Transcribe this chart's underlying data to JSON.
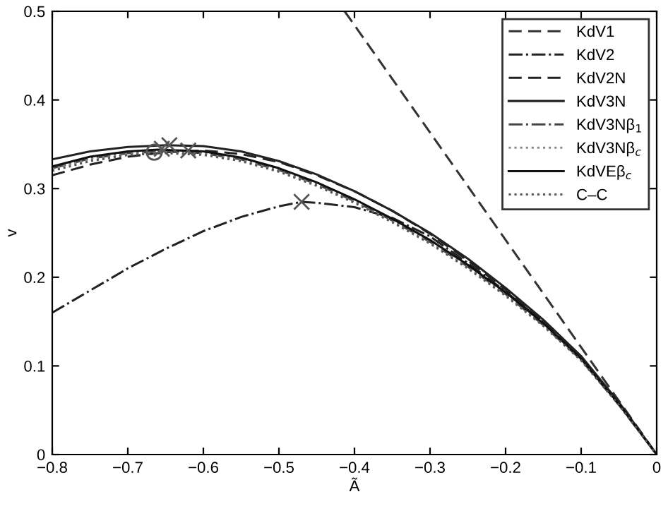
{
  "chart_data": {
    "type": "line",
    "xlabel": "Ã",
    "ylabel": "v",
    "xlim": [
      -0.8,
      0
    ],
    "ylim": [
      0,
      0.5
    ],
    "xticks": [
      -0.8,
      -0.7,
      -0.6,
      -0.5,
      -0.4,
      -0.3,
      -0.2,
      -0.1,
      0
    ],
    "yticks": [
      0,
      0.1,
      0.2,
      0.3,
      0.4,
      0.5
    ],
    "grid": false,
    "legend": "top right",
    "series": [
      {
        "name": "KdV1",
        "color": "#333333",
        "line_style": "dashed",
        "x": [
          -0.413,
          0
        ],
        "values": [
          0.5,
          0
        ]
      },
      {
        "name": "KdV2",
        "color": "#222222",
        "line_style": "dashdot",
        "x": [
          -0.8,
          -0.75,
          -0.7,
          -0.65,
          -0.6,
          -0.55,
          -0.5,
          -0.47,
          -0.45,
          -0.4,
          -0.35,
          -0.3,
          -0.25,
          -0.2,
          -0.15,
          -0.1,
          -0.05,
          0
        ],
        "values": [
          0.16,
          0.185,
          0.21,
          0.232,
          0.252,
          0.268,
          0.28,
          0.285,
          0.284,
          0.279,
          0.267,
          0.246,
          0.216,
          0.184,
          0.149,
          0.108,
          0.057,
          0
        ]
      },
      {
        "name": "KdV2N",
        "color": "#222222",
        "line_style": "dashed",
        "x": [
          -0.8,
          -0.75,
          -0.7,
          -0.65,
          -0.6,
          -0.55,
          -0.5,
          -0.45,
          -0.4,
          -0.35,
          -0.3,
          -0.25,
          -0.2,
          -0.15,
          -0.1,
          -0.05,
          0
        ],
        "values": [
          0.315,
          0.327,
          0.336,
          0.341,
          0.343,
          0.339,
          0.33,
          0.315,
          0.297,
          0.275,
          0.249,
          0.219,
          0.186,
          0.15,
          0.109,
          0.058,
          0
        ]
      },
      {
        "name": "KdV3N",
        "color": "#222222",
        "line_style": "solid",
        "x": [
          -0.8,
          -0.75,
          -0.7,
          -0.65,
          -0.6,
          -0.55,
          -0.5,
          -0.45,
          -0.4,
          -0.35,
          -0.3,
          -0.25,
          -0.2,
          -0.15,
          -0.1,
          -0.05,
          0
        ],
        "values": [
          0.333,
          0.342,
          0.347,
          0.349,
          0.348,
          0.342,
          0.331,
          0.316,
          0.297,
          0.275,
          0.25,
          0.221,
          0.188,
          0.152,
          0.111,
          0.059,
          0
        ]
      },
      {
        "name": "KdV3Nβ$_{1}$",
        "color": "#444444",
        "line_style": "dashdot",
        "x": [
          -0.8,
          -0.75,
          -0.7,
          -0.65,
          -0.6,
          -0.55,
          -0.5,
          -0.45,
          -0.4,
          -0.35,
          -0.3,
          -0.25,
          -0.2,
          -0.15,
          -0.1,
          -0.05,
          0
        ],
        "values": [
          0.323,
          0.334,
          0.34,
          0.342,
          0.34,
          0.333,
          0.321,
          0.305,
          0.286,
          0.264,
          0.24,
          0.212,
          0.181,
          0.146,
          0.107,
          0.056,
          0
        ]
      },
      {
        "name": "KdV3Nβ$_{c}$",
        "color": "#888888",
        "line_style": "dotted",
        "x": [
          -0.8,
          -0.75,
          -0.7,
          -0.65,
          -0.6,
          -0.55,
          -0.5,
          -0.45,
          -0.4,
          -0.35,
          -0.3,
          -0.25,
          -0.2,
          -0.15,
          -0.1,
          -0.05,
          0
        ],
        "values": [
          0.322,
          0.333,
          0.339,
          0.341,
          0.339,
          0.332,
          0.32,
          0.304,
          0.285,
          0.263,
          0.239,
          0.211,
          0.18,
          0.146,
          0.107,
          0.056,
          0
        ]
      },
      {
        "name": "KdVEβ$_{c}$",
        "color": "#111111",
        "line_style": "solid",
        "x": [
          -0.8,
          -0.75,
          -0.7,
          -0.66,
          -0.6,
          -0.55,
          -0.5,
          -0.45,
          -0.4,
          -0.35,
          -0.3,
          -0.25,
          -0.2,
          -0.15,
          -0.1,
          -0.05,
          0
        ],
        "values": [
          0.325,
          0.336,
          0.342,
          0.344,
          0.342,
          0.335,
          0.323,
          0.307,
          0.288,
          0.266,
          0.242,
          0.214,
          0.183,
          0.148,
          0.108,
          0.057,
          0
        ]
      },
      {
        "name": "C–C",
        "color": "#555555",
        "line_style": "dotted",
        "x": [
          -0.8,
          -0.75,
          -0.7,
          -0.65,
          -0.6,
          -0.55,
          -0.5,
          -0.45,
          -0.4,
          -0.35,
          -0.3,
          -0.25,
          -0.2,
          -0.15,
          -0.1,
          -0.05,
          0
        ],
        "values": [
          0.32,
          0.331,
          0.338,
          0.34,
          0.338,
          0.331,
          0.319,
          0.303,
          0.284,
          0.262,
          0.238,
          0.21,
          0.179,
          0.145,
          0.106,
          0.056,
          0
        ]
      },
      {
        "type": "scatter",
        "marker": "cross",
        "color": "#555555",
        "x": [
          -0.655,
          -0.645,
          -0.62,
          -0.47
        ],
        "values": [
          0.345,
          0.349,
          0.343,
          0.285
        ]
      },
      {
        "type": "scatter",
        "marker": "circle",
        "color": "#555555",
        "x": [
          -0.665
        ],
        "values": [
          0.341
        ]
      }
    ]
  }
}
